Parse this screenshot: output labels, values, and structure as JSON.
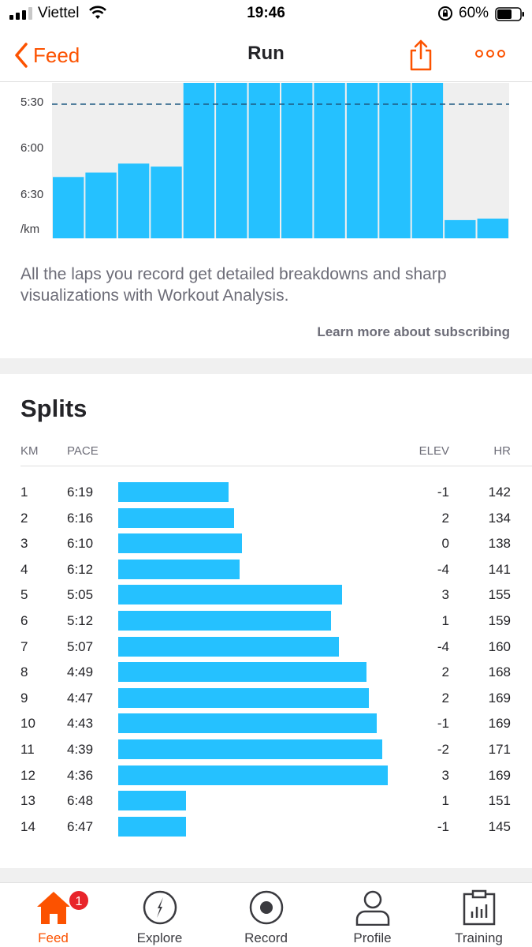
{
  "status_bar": {
    "carrier": "Viettel",
    "time": "19:46",
    "battery": "60%"
  },
  "nav": {
    "back_label": "Feed",
    "title": "Run"
  },
  "pace_chart": {
    "y_labels": [
      "5:30",
      "6:00",
      "6:30",
      "/km"
    ],
    "target_line_label": "5:30"
  },
  "chart_data": {
    "type": "bar",
    "categories": [
      "1",
      "2",
      "3",
      "4",
      "5",
      "6",
      "7",
      "8",
      "9",
      "10",
      "11",
      "12",
      "13",
      "14"
    ],
    "series": [
      {
        "values": [
          "6:19",
          "6:16",
          "6:10",
          "6:12",
          "5:05",
          "5:12",
          "5:07",
          "4:49",
          "4:47",
          "4:43",
          "4:39",
          "4:36",
          "6:48",
          "6:47"
        ]
      }
    ],
    "ylabel": "/km",
    "y_ticks": [
      "5:30",
      "6:00",
      "6:30"
    ],
    "reference_line": "5:30"
  },
  "description": "All the laps you record get detailed breakdowns and sharp visualizations with Workout Analysis.",
  "learn_more": "Learn more about subscribing",
  "splits": {
    "title": "Splits",
    "headers": {
      "km": "KM",
      "pace": "PACE",
      "elev": "ELEV",
      "hr": "HR"
    },
    "rows": [
      {
        "km": "1",
        "pace": "6:19",
        "elev": "-1",
        "hr": "142",
        "speed_fraction": 0.41
      },
      {
        "km": "2",
        "pace": "6:16",
        "elev": "2",
        "hr": "134",
        "speed_fraction": 0.43
      },
      {
        "km": "3",
        "pace": "6:10",
        "elev": "0",
        "hr": "138",
        "speed_fraction": 0.46
      },
      {
        "km": "4",
        "pace": "6:12",
        "elev": "-4",
        "hr": "141",
        "speed_fraction": 0.45
      },
      {
        "km": "5",
        "pace": "5:05",
        "elev": "3",
        "hr": "155",
        "speed_fraction": 0.83
      },
      {
        "km": "6",
        "pace": "5:12",
        "elev": "1",
        "hr": "159",
        "speed_fraction": 0.79
      },
      {
        "km": "7",
        "pace": "5:07",
        "elev": "-4",
        "hr": "160",
        "speed_fraction": 0.82
      },
      {
        "km": "8",
        "pace": "4:49",
        "elev": "2",
        "hr": "168",
        "speed_fraction": 0.92
      },
      {
        "km": "9",
        "pace": "4:47",
        "elev": "2",
        "hr": "169",
        "speed_fraction": 0.93
      },
      {
        "km": "10",
        "pace": "4:43",
        "elev": "-1",
        "hr": "169",
        "speed_fraction": 0.96
      },
      {
        "km": "11",
        "pace": "4:39",
        "elev": "-2",
        "hr": "171",
        "speed_fraction": 0.98
      },
      {
        "km": "12",
        "pace": "4:36",
        "elev": "3",
        "hr": "169",
        "speed_fraction": 1.0
      },
      {
        "km": "13",
        "pace": "6:48",
        "elev": "1",
        "hr": "151",
        "speed_fraction": 0.25
      },
      {
        "km": "14",
        "pace": "6:47",
        "elev": "-1",
        "hr": "145",
        "speed_fraction": 0.25
      }
    ]
  },
  "tabs": [
    {
      "label": "Feed",
      "icon": "home-icon",
      "active": true,
      "badge": "1"
    },
    {
      "label": "Explore",
      "icon": "compass-icon",
      "active": false
    },
    {
      "label": "Record",
      "icon": "record-icon",
      "active": false
    },
    {
      "label": "Profile",
      "icon": "profile-icon",
      "active": false
    },
    {
      "label": "Training",
      "icon": "training-icon",
      "active": false
    }
  ],
  "colors": {
    "accent": "#fc5200",
    "bar": "#25c1ff",
    "badge": "#e8242a"
  }
}
